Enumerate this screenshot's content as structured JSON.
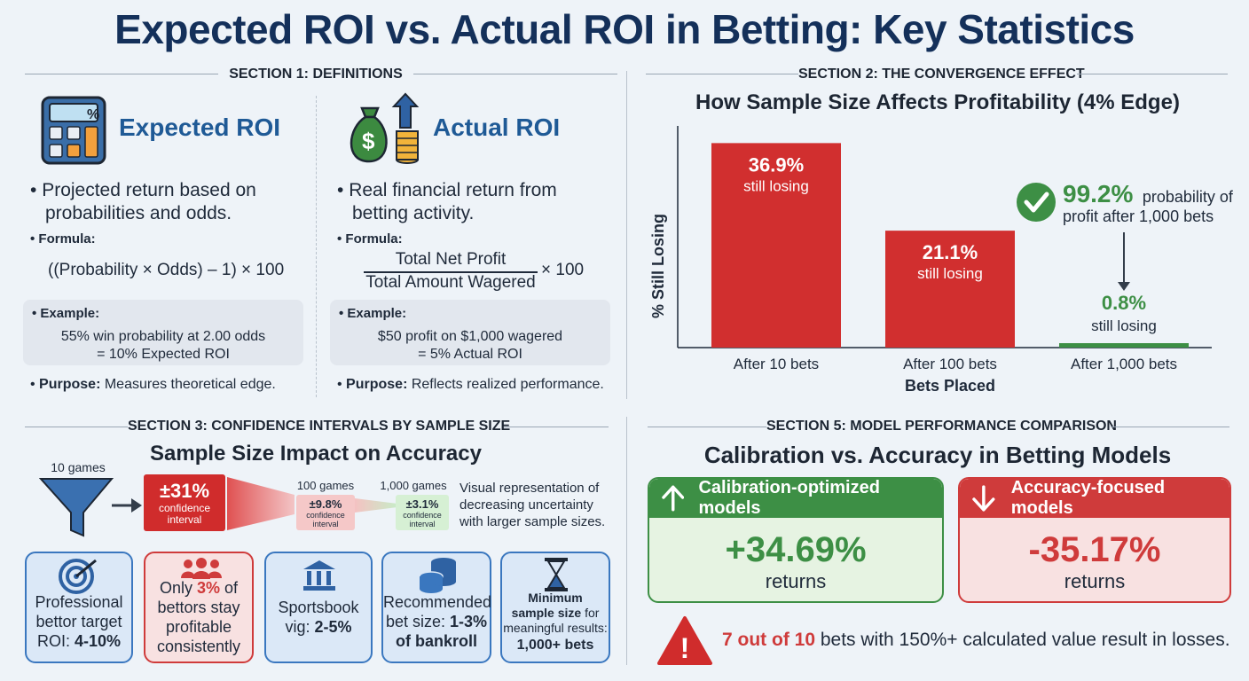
{
  "title": "Expected ROI vs. Actual ROI in Betting: Key Statistics",
  "section1": {
    "heading": "SECTION 1: DEFINITIONS",
    "expected": {
      "title": "Expected ROI",
      "bullet_line1": "Projected return based on",
      "bullet_line2": "probabilities and odds.",
      "formula_label": "Formula:",
      "formula": "((Probability × Odds) – 1) × 100",
      "example_label": "Example:",
      "example_line1": "55% win probability at 2.00 odds",
      "example_line2": "= 10% Expected ROI",
      "purpose_label": "Purpose:",
      "purpose_text": "Measures theoretical edge."
    },
    "actual": {
      "title": "Actual ROI",
      "bullet_line1": "Real financial return from",
      "bullet_line2": "betting activity.",
      "formula_label": "Formula:",
      "numerator": "Total Net Profit",
      "denominator": "Total Amount Wagered",
      "multiplier": "× 100",
      "example_label": "Example:",
      "example_line1": "$50 profit on $1,000 wagered",
      "example_line2": "= 5% Actual ROI",
      "purpose_label": "Purpose:",
      "purpose_text": "Reflects realized performance."
    },
    "calculator_symbol": "%",
    "money_symbol": "$"
  },
  "section2": {
    "heading": "SECTION 2: THE CONVERGENCE EFFECT"
  },
  "chart_data": {
    "type": "bar",
    "title": "How Sample Size Affects Profitability (4% Edge)",
    "xlabel": "Bets Placed",
    "ylabel": "% Still Losing",
    "categories": [
      "After 10 bets",
      "After 100 bets",
      "After 1,000 bets"
    ],
    "values": [
      36.9,
      21.1,
      0.8
    ],
    "value_labels": [
      "36.9%",
      "21.1%",
      "0.8%"
    ],
    "value_sublabel": "still losing",
    "ylim": [
      0,
      40
    ],
    "bar_colors": [
      "#d12f2f",
      "#d12f2f",
      "#3d8f45"
    ],
    "annotation": {
      "value": "99.2%",
      "text_line1": "probability of",
      "text_line2": "profit after 1,000 bets"
    },
    "grid": false
  },
  "section3": {
    "heading": "SECTION 3: CONFIDENCE INTERVALS BY SAMPLE SIZE",
    "subtitle": "Sample Size Impact on Accuracy",
    "stages": [
      {
        "games": "10 games",
        "value": "±31%",
        "label_line1": "confidence",
        "label_line2": "interval"
      },
      {
        "games": "100 games",
        "value": "±9.8%",
        "label_line1": "confidence",
        "label_line2": "interval"
      },
      {
        "games": "1,000 games",
        "value": "±3.1%",
        "label_line1": "confidence",
        "label_line2": "interval"
      }
    ],
    "note_line1": "Visual representation of",
    "note_line2": "decreasing uncertainty",
    "note_line3": "with larger sample sizes.",
    "cards": [
      {
        "l1": "Professional",
        "l2": "bettor target",
        "l3": "ROI: ",
        "l3b": "4-10%",
        "color": "#3a77bf",
        "bg": "#dbe8f7"
      },
      {
        "l1": "Only ",
        "l1b": "3%",
        "l1c": " of",
        "l2": "bettors stay",
        "l3": "profitable",
        "l4": "consistently",
        "color": "#cf3b3b",
        "bg": "#f8e1e1"
      },
      {
        "l1": "Sportsbook",
        "l2": "vig: ",
        "l2b": "2-5%",
        "color": "#3a77bf",
        "bg": "#dbe8f7"
      },
      {
        "l1": "Recommended",
        "l2": "bet size: ",
        "l2b": "1-3%",
        "l3": "of bankroll",
        "color": "#3a77bf",
        "bg": "#dbe8f7"
      },
      {
        "l1": "Minimum",
        "l2": "sample size",
        "l2c": " for",
        "l3": "meaningful results:",
        "l4": "1,000+ bets",
        "color": "#3a77bf",
        "bg": "#dbe8f7"
      }
    ]
  },
  "section5": {
    "heading": "SECTION 5: MODEL PERFORMANCE COMPARISON",
    "subtitle": "Calibration vs. Accuracy in Betting Models",
    "calibration": {
      "label": "Calibration-optimized models",
      "value": "+34.69%",
      "unit": "returns",
      "color": "#3d8f45"
    },
    "accuracy": {
      "label": "Accuracy-focused models",
      "value": "-35.17%",
      "unit": "returns",
      "color": "#cf3b3b"
    },
    "warning_bold": "7 out of 10",
    "warning_text": " bets with 150%+ calculated value result in losses.",
    "warning_icon": "!"
  }
}
